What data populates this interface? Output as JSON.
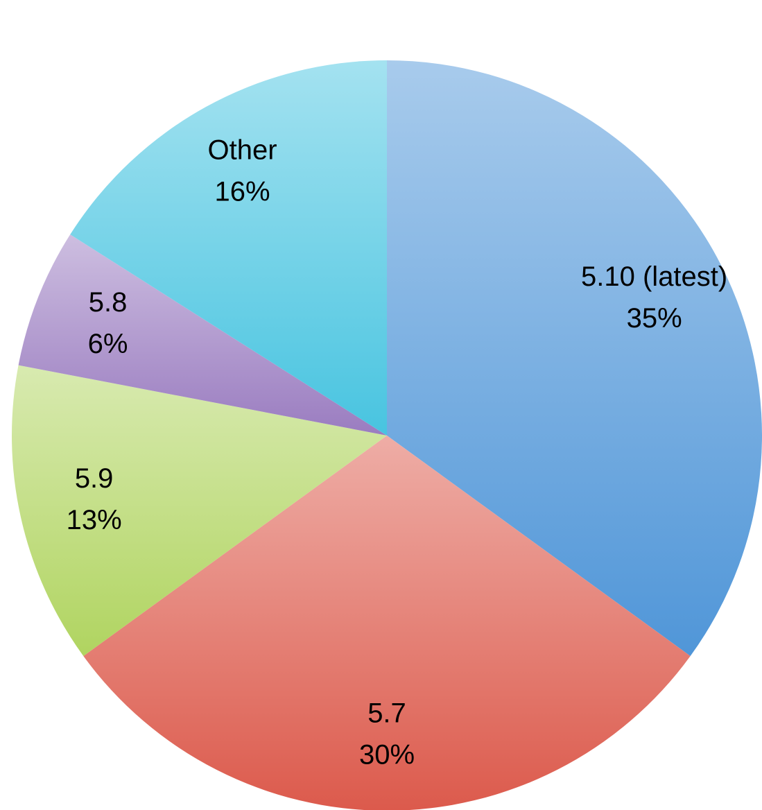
{
  "chart_data": {
    "type": "pie",
    "categories": [
      "5.10 (latest)",
      "5.7",
      "5.9",
      "5.8",
      "Other"
    ],
    "values": [
      35,
      30,
      13,
      6,
      16
    ],
    "value_labels": [
      "35%",
      "30%",
      "13%",
      "6%",
      "16%"
    ],
    "colors": [
      "#5096d8",
      "#dc5a4c",
      "#b0d460",
      "#9a7cc0",
      "#48c4e0"
    ]
  }
}
